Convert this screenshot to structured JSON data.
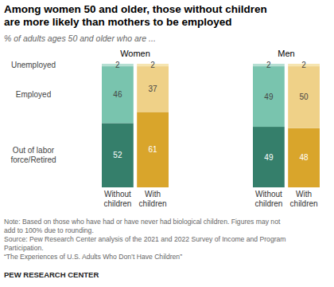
{
  "title": [
    "Among women 50 and older, those without children",
    "are more likely than mothers to be employed"
  ],
  "subtitle": "% of adults ages 50 and older who are ...",
  "notes": [
    "Note: Based on those who have had or have never had biological children. Figures may not",
    "add to 100% due to rounding.",
    "Source: Pew Research Center analysis of the 2021 and 2022 Survey of Income and Program",
    "Participation.",
    "“The Experiences of U.S. Adults Who Don’t Have Children”"
  ],
  "credit": "PEW RESEARCH CENTER",
  "chart_data": [
    {
      "type": "bar",
      "title": "Women",
      "stacked": true,
      "data_labels": true,
      "tick_labels": "x",
      "categories": [
        "Without children",
        "With children"
      ],
      "series": [
        {
          "name": "Out of labor force/Retired",
          "colors": [
            "#357f6b",
            "#d9a52b"
          ],
          "values": [
            52,
            61
          ]
        },
        {
          "name": "Employed",
          "colors": [
            "#79c4ae",
            "#efd188"
          ],
          "values": [
            46,
            37
          ]
        },
        {
          "name": "Unemployed",
          "colors": [
            "#b5dfd2",
            "#f6e5b0"
          ],
          "values": [
            2,
            2
          ]
        }
      ]
    },
    {
      "type": "bar",
      "title": "Men",
      "stacked": true,
      "data_labels": true,
      "tick_labels": "x",
      "categories": [
        "Without children",
        "With children"
      ],
      "series": [
        {
          "colors": [
            "#357f6b",
            "#d9a52b"
          ],
          "values": [
            49,
            48
          ]
        },
        {
          "colors": [
            "#79c4ae",
            "#efd188"
          ],
          "values": [
            49,
            50
          ]
        },
        {
          "colors": [
            "#b5dfd2",
            "#f6e5b0"
          ],
          "values": [
            2,
            2
          ]
        }
      ]
    }
  ]
}
